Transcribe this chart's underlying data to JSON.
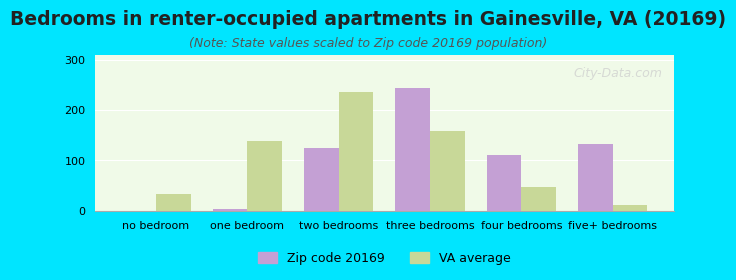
{
  "title": "Bedrooms in renter-occupied apartments in Gainesville, VA (20169)",
  "subtitle": "(Note: State values scaled to Zip code 20169 population)",
  "categories": [
    "no bedroom",
    "one bedroom",
    "two bedrooms",
    "three bedrooms",
    "four bedrooms",
    "five+ bedrooms"
  ],
  "zip_values": [
    0,
    3,
    125,
    243,
    111,
    133
  ],
  "va_values": [
    33,
    138,
    235,
    158,
    48,
    11
  ],
  "zip_color": "#c4a0d4",
  "va_color": "#c8d898",
  "background_outer": "#00e5ff",
  "background_inner": "#f0fae8",
  "ylim": [
    0,
    310
  ],
  "yticks": [
    0,
    100,
    200,
    300
  ],
  "bar_width": 0.38,
  "title_fontsize": 13.5,
  "subtitle_fontsize": 9,
  "tick_fontsize": 8,
  "legend_fontsize": 9,
  "watermark": "City-Data.com"
}
